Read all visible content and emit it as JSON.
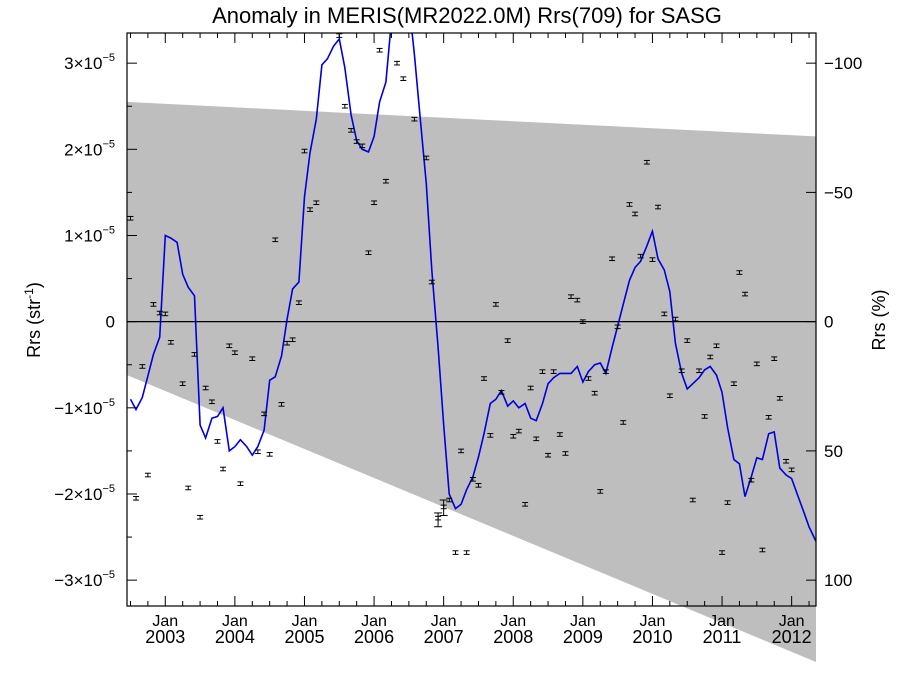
{
  "chart_data": {
    "type": "scatter",
    "title": "Anomaly in MERIS(MR2022.0M) Rrs(709) for SASG",
    "ylabel_left": "Rrs (str",
    "ylabel_left_sup": "-1",
    "ylabel_left_end": ")",
    "ylabel_right": "Rrs (%)",
    "y_scale_label": "×10",
    "y_exponent": "−5",
    "ylim": [
      -3.3e-05,
      3.35e-05
    ],
    "y_ticks": [
      -3,
      -2,
      -1,
      0,
      1,
      2,
      3
    ],
    "y_tick_zero_label": "0",
    "y2_ticks": [
      {
        "label": "−100",
        "y": 3e-05
      },
      {
        "label": "−50",
        "y": 1.5e-05
      },
      {
        "label": "0",
        "y": 0
      },
      {
        "label": "50",
        "y": -1.5e-05
      },
      {
        "label": "100",
        "y": -3e-05
      }
    ],
    "xlim": [
      2002.45,
      2012.35
    ],
    "x_ticks": [
      {
        "x": 2003.0,
        "month": "Jan",
        "year": "2003"
      },
      {
        "x": 2004.0,
        "month": "Jan",
        "year": "2004"
      },
      {
        "x": 2005.0,
        "month": "Jan",
        "year": "2005"
      },
      {
        "x": 2006.0,
        "month": "Jan",
        "year": "2006"
      },
      {
        "x": 2007.0,
        "month": "Jan",
        "year": "2007"
      },
      {
        "x": 2008.0,
        "month": "Jan",
        "year": "2008"
      },
      {
        "x": 2009.0,
        "month": "Jan",
        "year": "2009"
      },
      {
        "x": 2010.0,
        "month": "Jan",
        "year": "2010"
      },
      {
        "x": 2011.0,
        "month": "Jan",
        "year": "2011"
      },
      {
        "x": 2012.0,
        "month": "Jan",
        "year": "2012"
      }
    ],
    "reference_line_y": 0,
    "band": {
      "color": "#bebebe",
      "upper": [
        [
          2002.45,
          2.55e-05
        ],
        [
          2012.35,
          2.15e-05
        ]
      ],
      "lower": [
        [
          2002.45,
          -6.2e-06
        ],
        [
          2012.35,
          -3.95e-05
        ]
      ]
    },
    "points": [
      [
        2002.5,
        1.2e-05
      ],
      [
        2002.58,
        -2.05e-05
      ],
      [
        2002.67,
        -5.2e-06
      ],
      [
        2002.75,
        -1.78e-05
      ],
      [
        2002.83,
        2e-06
      ],
      [
        2002.92,
        1e-06
      ],
      [
        2003.0,
        9e-07
      ],
      [
        2003.08,
        -2.4e-06
      ],
      [
        2003.25,
        -7.2e-06
      ],
      [
        2003.33,
        -1.93e-05
      ],
      [
        2003.42,
        -3.8e-06
      ],
      [
        2003.5,
        -2.27e-05
      ],
      [
        2003.58,
        -7.7e-06
      ],
      [
        2003.67,
        -9.3e-06
      ],
      [
        2003.75,
        -1.39e-05
      ],
      [
        2003.83,
        -1.71e-05
      ],
      [
        2003.92,
        -2.8e-06
      ],
      [
        2004.0,
        -3.6e-06
      ],
      [
        2004.08,
        -1.88e-05
      ],
      [
        2004.25,
        -4.3e-06
      ],
      [
        2004.33,
        -1.51e-05
      ],
      [
        2004.42,
        -1.07e-05
      ],
      [
        2004.5,
        -1.54e-05
      ],
      [
        2004.58,
        9.5e-06
      ],
      [
        2004.67,
        -9.6e-06
      ],
      [
        2004.75,
        -2.5e-06
      ],
      [
        2004.83,
        -2.1e-06
      ],
      [
        2004.92,
        2.2e-06
      ],
      [
        2005.0,
        1.98e-05
      ],
      [
        2005.08,
        1.3e-05
      ],
      [
        2005.17,
        1.38e-05
      ],
      [
        2005.33,
        3.38e-05
      ],
      [
        2005.5,
        3.32e-05
      ],
      [
        2005.58,
        2.5e-05
      ],
      [
        2005.67,
        2.22e-05
      ],
      [
        2005.75,
        2.09e-05
      ],
      [
        2005.83,
        2.04e-05
      ],
      [
        2005.92,
        8e-06
      ],
      [
        2006.0,
        1.38e-05
      ],
      [
        2006.08,
        3.15e-05
      ],
      [
        2006.17,
        1.63e-05
      ],
      [
        2006.33,
        3e-05
      ],
      [
        2006.42,
        2.82e-05
      ],
      [
        2006.58,
        2.35e-05
      ],
      [
        2006.75,
        1.9e-05
      ],
      [
        2006.83,
        4.6e-06
      ],
      [
        2006.92,
        -2.28e-05
      ],
      [
        2007.0,
        -2.15e-05
      ],
      [
        2007.08,
        -2.07e-05
      ],
      [
        2007.17,
        -2.68e-05
      ],
      [
        2007.25,
        -1.5e-05
      ],
      [
        2007.33,
        -2.68e-05
      ],
      [
        2007.42,
        -1.83e-05
      ],
      [
        2007.5,
        -1.9e-05
      ],
      [
        2007.58,
        -6.6e-06
      ],
      [
        2007.67,
        -1.32e-05
      ],
      [
        2007.75,
        2e-06
      ],
      [
        2007.83,
        -8.2e-06
      ],
      [
        2007.92,
        -2.2e-06
      ],
      [
        2008.0,
        -1.33e-05
      ],
      [
        2008.08,
        -1.27e-05
      ],
      [
        2008.17,
        -2.12e-05
      ],
      [
        2008.25,
        -7.7e-06
      ],
      [
        2008.33,
        -1.36e-05
      ],
      [
        2008.42,
        -5.8e-06
      ],
      [
        2008.5,
        -1.55e-05
      ],
      [
        2008.58,
        -5.8e-06
      ],
      [
        2008.67,
        -1.31e-05
      ],
      [
        2008.75,
        -1.53e-05
      ],
      [
        2008.83,
        2.9e-06
      ],
      [
        2008.92,
        2.5e-06
      ],
      [
        2009.0,
        0.0
      ],
      [
        2009.08,
        -6.6e-06
      ],
      [
        2009.17,
        -8.3e-06
      ],
      [
        2009.25,
        -1.97e-05
      ],
      [
        2009.33,
        -5.8e-06
      ],
      [
        2009.42,
        7.3e-06
      ],
      [
        2009.5,
        -6e-07
      ],
      [
        2009.58,
        -1.17e-05
      ],
      [
        2009.67,
        1.36e-05
      ],
      [
        2009.75,
        1.25e-05
      ],
      [
        2009.83,
        7.6e-06
      ],
      [
        2009.92,
        1.85e-05
      ],
      [
        2010.0,
        7.2e-06
      ],
      [
        2010.08,
        1.33e-05
      ],
      [
        2010.17,
        9e-07
      ],
      [
        2010.25,
        -8.6e-06
      ],
      [
        2010.33,
        3e-07
      ],
      [
        2010.42,
        -5.7e-06
      ],
      [
        2010.5,
        -2.2e-06
      ],
      [
        2010.58,
        -2.07e-05
      ],
      [
        2010.67,
        -5.7e-06
      ],
      [
        2010.75,
        -1.1e-05
      ],
      [
        2010.83,
        -4.1e-06
      ],
      [
        2010.92,
        -2.8e-06
      ],
      [
        2011.0,
        -2.68e-05
      ],
      [
        2011.08,
        -2.1e-05
      ],
      [
        2011.17,
        -7.2e-06
      ],
      [
        2011.25,
        5.7e-06
      ],
      [
        2011.33,
        3.2e-06
      ],
      [
        2011.42,
        -1.84e-05
      ],
      [
        2011.5,
        -4.9e-06
      ],
      [
        2011.58,
        -2.65e-05
      ],
      [
        2011.67,
        -1.11e-05
      ],
      [
        2011.75,
        -4.3e-06
      ],
      [
        2011.83,
        -8.9e-06
      ],
      [
        2011.92,
        -1.62e-05
      ],
      [
        2012.0,
        -1.72e-05
      ]
    ],
    "point_errors": [
      {
        "x": 2006.92,
        "y": -2.28e-05,
        "low": -2.38e-05,
        "high": -2.22e-05
      },
      {
        "x": 2007.0,
        "y": -2.15e-05,
        "low": -2.25e-05,
        "high": -2.07e-05
      }
    ],
    "series": [
      {
        "color": "#0000dd",
        "values": [
          [
            2002.5,
            -9e-06
          ],
          [
            2002.58,
            -1.02e-05
          ],
          [
            2002.67,
            -8.8e-06
          ],
          [
            2002.75,
            -6.3e-06
          ],
          [
            2002.83,
            -3.8e-06
          ],
          [
            2002.92,
            -1.8e-06
          ],
          [
            2003.0,
            1e-05
          ],
          [
            2003.08,
            9.7e-06
          ],
          [
            2003.17,
            9.2e-06
          ],
          [
            2003.25,
            5.5e-06
          ],
          [
            2003.33,
            4e-06
          ],
          [
            2003.42,
            3e-06
          ],
          [
            2003.5,
            -1.2e-05
          ],
          [
            2003.58,
            -1.35e-05
          ],
          [
            2003.67,
            -1.12e-05
          ],
          [
            2003.75,
            -1.1e-05
          ],
          [
            2003.83,
            -1e-05
          ],
          [
            2003.92,
            -1.5e-05
          ],
          [
            2004.0,
            -1.45e-05
          ],
          [
            2004.08,
            -1.37e-05
          ],
          [
            2004.17,
            -1.45e-05
          ],
          [
            2004.25,
            -1.55e-05
          ],
          [
            2004.33,
            -1.45e-05
          ],
          [
            2004.42,
            -1.26e-05
          ],
          [
            2004.5,
            -6.8e-06
          ],
          [
            2004.58,
            -6.4e-06
          ],
          [
            2004.67,
            -4e-06
          ],
          [
            2004.75,
            3e-07
          ],
          [
            2004.83,
            3.8e-06
          ],
          [
            2004.92,
            4.6e-06
          ],
          [
            2005.0,
            1.45e-05
          ],
          [
            2005.08,
            1.96e-05
          ],
          [
            2005.17,
            2.35e-05
          ],
          [
            2005.25,
            2.98e-05
          ],
          [
            2005.33,
            3.05e-05
          ],
          [
            2005.42,
            3.2e-05
          ],
          [
            2005.5,
            3.28e-05
          ],
          [
            2005.58,
            2.95e-05
          ],
          [
            2005.67,
            2.4e-05
          ],
          [
            2005.75,
            2.1e-05
          ],
          [
            2005.83,
            2e-05
          ],
          [
            2005.92,
            1.97e-05
          ],
          [
            2006.0,
            2.15e-05
          ],
          [
            2006.08,
            2.55e-05
          ],
          [
            2006.17,
            2.78e-05
          ],
          [
            2006.25,
            3.5e-05
          ],
          [
            2006.33,
            3.6e-05
          ],
          [
            2006.42,
            3.7e-05
          ],
          [
            2006.5,
            3.7e-05
          ],
          [
            2006.58,
            3.1e-05
          ],
          [
            2006.67,
            2.3e-05
          ],
          [
            2006.75,
            1.6e-05
          ],
          [
            2006.83,
            6e-06
          ],
          [
            2006.92,
            -3e-06
          ],
          [
            2007.0,
            -1.2e-05
          ],
          [
            2007.08,
            -2e-05
          ],
          [
            2007.17,
            -2.17e-05
          ],
          [
            2007.25,
            -2.12e-05
          ],
          [
            2007.33,
            -1.95e-05
          ],
          [
            2007.42,
            -1.8e-05
          ],
          [
            2007.5,
            -1.57e-05
          ],
          [
            2007.58,
            -1.3e-05
          ],
          [
            2007.67,
            -9.5e-06
          ],
          [
            2007.75,
            -9e-06
          ],
          [
            2007.83,
            -8e-06
          ],
          [
            2007.92,
            -9.8e-06
          ],
          [
            2008.0,
            -9.2e-06
          ],
          [
            2008.08,
            -1e-05
          ],
          [
            2008.17,
            -9.5e-06
          ],
          [
            2008.25,
            -1.12e-05
          ],
          [
            2008.33,
            -1.15e-05
          ],
          [
            2008.42,
            -9.5e-06
          ],
          [
            2008.5,
            -7.2e-06
          ],
          [
            2008.58,
            -6.5e-06
          ],
          [
            2008.67,
            -6e-06
          ],
          [
            2008.75,
            -6e-06
          ],
          [
            2008.83,
            -6e-06
          ],
          [
            2008.92,
            -5.2e-06
          ],
          [
            2009.0,
            -7e-06
          ],
          [
            2009.08,
            -5.8e-06
          ],
          [
            2009.17,
            -5e-06
          ],
          [
            2009.25,
            -4.8e-06
          ],
          [
            2009.33,
            -6e-06
          ],
          [
            2009.42,
            -3e-06
          ],
          [
            2009.5,
            -5e-07
          ],
          [
            2009.58,
            2e-06
          ],
          [
            2009.67,
            4.8e-06
          ],
          [
            2009.75,
            6.3e-06
          ],
          [
            2009.83,
            7e-06
          ],
          [
            2009.92,
            8.8e-06
          ],
          [
            2010.0,
            1.05e-05
          ],
          [
            2010.08,
            7.3e-06
          ],
          [
            2010.17,
            6e-06
          ],
          [
            2010.25,
            3.5e-06
          ],
          [
            2010.33,
            -2.5e-06
          ],
          [
            2010.42,
            -6e-06
          ],
          [
            2010.5,
            -7.8e-06
          ],
          [
            2010.58,
            -7.2e-06
          ],
          [
            2010.67,
            -6.5e-06
          ],
          [
            2010.75,
            -5.6e-06
          ],
          [
            2010.83,
            -5.2e-06
          ],
          [
            2010.92,
            -6.2e-06
          ],
          [
            2011.0,
            -8.2e-06
          ],
          [
            2011.08,
            -1.23e-05
          ],
          [
            2011.17,
            -1.6e-05
          ],
          [
            2011.25,
            -1.65e-05
          ],
          [
            2011.33,
            -2.03e-05
          ],
          [
            2011.42,
            -1.8e-05
          ],
          [
            2011.5,
            -1.58e-05
          ],
          [
            2011.58,
            -1.6e-05
          ],
          [
            2011.67,
            -1.3e-05
          ],
          [
            2011.75,
            -1.28e-05
          ],
          [
            2011.83,
            -1.7e-05
          ],
          [
            2011.92,
            -1.78e-05
          ],
          [
            2012.0,
            -1.82e-05
          ],
          [
            2012.08,
            -2e-05
          ],
          [
            2012.17,
            -2.2e-05
          ],
          [
            2012.25,
            -2.38e-05
          ],
          [
            2012.35,
            -2.55e-05
          ]
        ]
      }
    ],
    "grid": false,
    "legend": "none"
  }
}
